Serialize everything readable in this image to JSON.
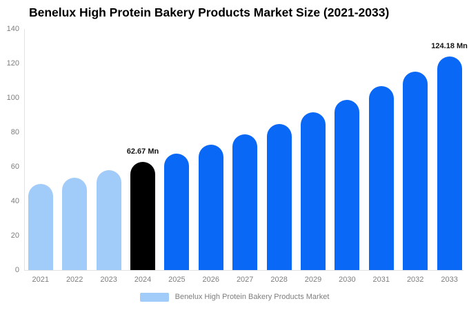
{
  "title": "Benelux High Protein Bakery Products Market Size (2021-2033)",
  "legend": {
    "label": "Benelux High Protein Bakery Products Market",
    "swatch_color": "#a1cbf9"
  },
  "colors": {
    "bar_past": "#a1cbf9",
    "bar_current": "#000000",
    "bar_forecast": "#0968f5",
    "axis_line": "#e2e2e2",
    "muted_text": "#7d7d7d",
    "value_label_text": "#141414"
  },
  "chart_data": {
    "type": "bar",
    "title": "Benelux High Protein Bakery Products Market Size (2021-2033)",
    "categories": [
      "2021",
      "2022",
      "2023",
      "2024",
      "2025",
      "2026",
      "2027",
      "2028",
      "2029",
      "2030",
      "2031",
      "2032",
      "2033"
    ],
    "values": [
      49.9,
      53.8,
      58.1,
      62.67,
      67.6,
      73.0,
      78.7,
      84.9,
      91.6,
      98.9,
      106.7,
      115.1,
      124.18
    ],
    "bar_color_roles": [
      "past",
      "past",
      "past",
      "current",
      "forecast",
      "forecast",
      "forecast",
      "forecast",
      "forecast",
      "forecast",
      "forecast",
      "forecast",
      "forecast"
    ],
    "point_labels": {
      "2024": "62.67 Mn",
      "2033": "124.18 Mn"
    },
    "xlabel": "",
    "ylabel": "",
    "ylim": [
      0,
      140
    ],
    "yticks": [
      0,
      20,
      40,
      60,
      80,
      100,
      120,
      140
    ],
    "grid": false,
    "legend_position": "bottom",
    "legend_entries": [
      "Benelux High Protein Bakery Products Market"
    ]
  }
}
